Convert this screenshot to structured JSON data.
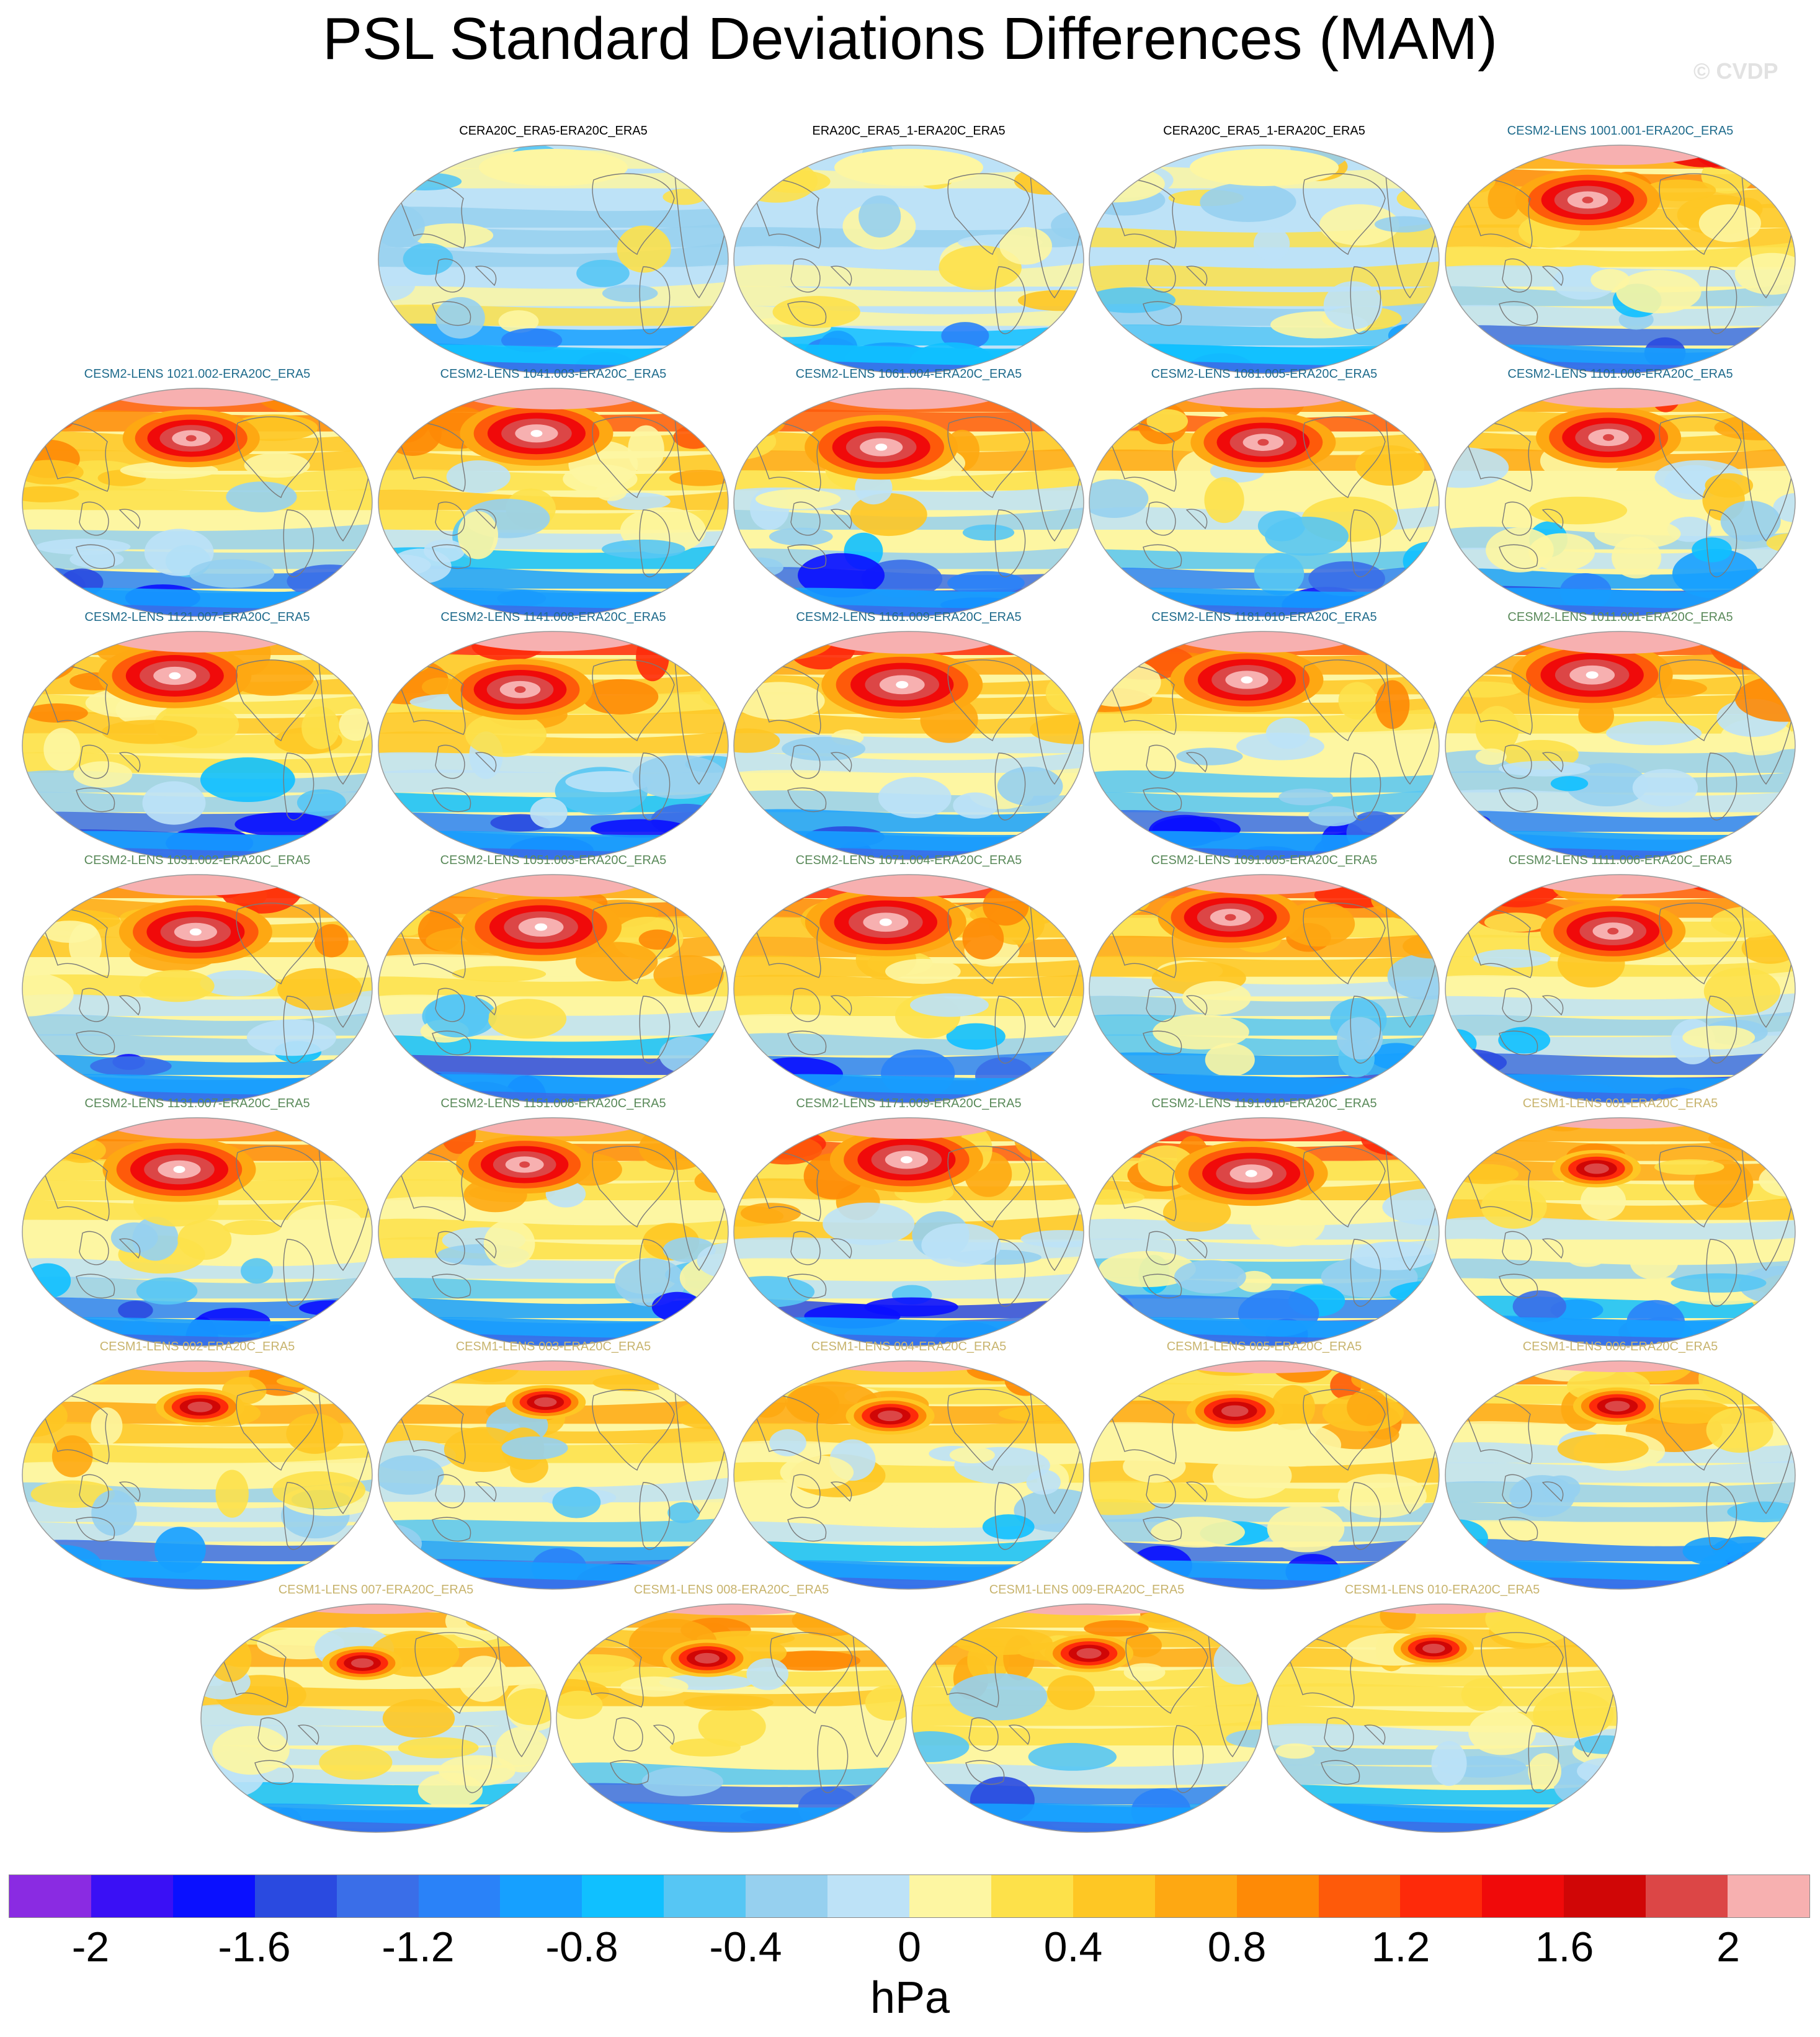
{
  "title": "PSL Standard Deviations Differences (MAM)",
  "watermark": "© CVDP",
  "colors": {
    "obs_label": "#000000",
    "cesm2_a_label": "#1f6b8c",
    "cesm2_b_label": "#5a8a5a",
    "cesm1_label": "#c8b46e",
    "land_outline": "#7a7a7a"
  },
  "panels": [
    {
      "label": "CERA20C_ERA5-ERA20C_ERA5",
      "group": "obs",
      "signal": 0.0
    },
    {
      "label": "ERA20C_ERA5_1-ERA20C_ERA5",
      "group": "obs",
      "signal": 0.05
    },
    {
      "label": "CERA20C_ERA5_1-ERA20C_ERA5",
      "group": "obs",
      "signal": 0.02
    },
    {
      "label": "CESM2-LENS 1001.001-ERA20C_ERA5",
      "group": "cesm2a",
      "signal": 0.9
    },
    {
      "label": "CESM2-LENS 1021.002-ERA20C_ERA5",
      "group": "cesm2a",
      "signal": 0.85
    },
    {
      "label": "CESM2-LENS 1041.003-ERA20C_ERA5",
      "group": "cesm2a",
      "signal": 0.95
    },
    {
      "label": "CESM2-LENS 1061.004-ERA20C_ERA5",
      "group": "cesm2a",
      "signal": 0.95
    },
    {
      "label": "CESM2-LENS 1081.005-ERA20C_ERA5",
      "group": "cesm2a",
      "signal": 0.9
    },
    {
      "label": "CESM2-LENS 1101.006-ERA20C_ERA5",
      "group": "cesm2a",
      "signal": 0.9
    },
    {
      "label": "CESM2-LENS 1121.007-ERA20C_ERA5",
      "group": "cesm2a",
      "signal": 0.95
    },
    {
      "label": "CESM2-LENS 1141.008-ERA20C_ERA5",
      "group": "cesm2a",
      "signal": 0.9
    },
    {
      "label": "CESM2-LENS 1161.009-ERA20C_ERA5",
      "group": "cesm2a",
      "signal": 1.0
    },
    {
      "label": "CESM2-LENS 1181.010-ERA20C_ERA5",
      "group": "cesm2a",
      "signal": 0.95
    },
    {
      "label": "CESM2-LENS 1011.001-ERA20C_ERA5",
      "group": "cesm2b",
      "signal": 1.0
    },
    {
      "label": "CESM2-LENS 1031.002-ERA20C_ERA5",
      "group": "cesm2b",
      "signal": 0.95
    },
    {
      "label": "CESM2-LENS 1051.003-ERA20C_ERA5",
      "group": "cesm2b",
      "signal": 1.0
    },
    {
      "label": "CESM2-LENS 1071.004-ERA20C_ERA5",
      "group": "cesm2b",
      "signal": 1.0
    },
    {
      "label": "CESM2-LENS 1091.005-ERA20C_ERA5",
      "group": "cesm2b",
      "signal": 0.9
    },
    {
      "label": "CESM2-LENS 1111.006-ERA20C_ERA5",
      "group": "cesm2b",
      "signal": 0.9
    },
    {
      "label": "CESM2-LENS 1131.007-ERA20C_ERA5",
      "group": "cesm2b",
      "signal": 0.95
    },
    {
      "label": "CESM2-LENS 1151.008-ERA20C_ERA5",
      "group": "cesm2b",
      "signal": 0.85
    },
    {
      "label": "CESM2-LENS 1171.009-ERA20C_ERA5",
      "group": "cesm2b",
      "signal": 0.95
    },
    {
      "label": "CESM2-LENS 1191.010-ERA20C_ERA5",
      "group": "cesm2b",
      "signal": 0.95
    },
    {
      "label": "CESM1-LENS 001-ERA20C_ERA5",
      "group": "cesm1",
      "signal": 0.55
    },
    {
      "label": "CESM1-LENS 002-ERA20C_ERA5",
      "group": "cesm1",
      "signal": 0.55
    },
    {
      "label": "CESM1-LENS 003-ERA20C_ERA5",
      "group": "cesm1",
      "signal": 0.5
    },
    {
      "label": "CESM1-LENS 004-ERA20C_ERA5",
      "group": "cesm1",
      "signal": 0.55
    },
    {
      "label": "CESM1-LENS 005-ERA20C_ERA5",
      "group": "cesm1",
      "signal": 0.6
    },
    {
      "label": "CESM1-LENS 006-ERA20C_ERA5",
      "group": "cesm1",
      "signal": 0.55
    },
    {
      "label": "CESM1-LENS 007-ERA20C_ERA5",
      "group": "cesm1",
      "signal": 0.5
    },
    {
      "label": "CESM1-LENS 008-ERA20C_ERA5",
      "group": "cesm1",
      "signal": 0.55
    },
    {
      "label": "CESM1-LENS 009-ERA20C_ERA5",
      "group": "cesm1",
      "signal": 0.55
    },
    {
      "label": "CESM1-LENS 010-ERA20C_ERA5",
      "group": "cesm1",
      "signal": 0.5
    }
  ],
  "colorbar": {
    "unit": "hPa",
    "colors": [
      "#8a2be2",
      "#3a10f5",
      "#0a10ff",
      "#2a4ae0",
      "#3a6ee8",
      "#2a82f8",
      "#16a0ff",
      "#10c0ff",
      "#56c6f4",
      "#96d0ef",
      "#bde2f7",
      "#fdf6a2",
      "#fde14a",
      "#fec724",
      "#fea812",
      "#fe8a06",
      "#fe5a0a",
      "#fe2a0a",
      "#f00a0a",
      "#d00606",
      "#dc4646",
      "#f7b0b0"
    ],
    "tick_labels": [
      "-2",
      "-1.6",
      "-1.2",
      "-0.8",
      "-0.4",
      "0",
      "0.4",
      "0.8",
      "1.2",
      "1.6",
      "2"
    ]
  }
}
